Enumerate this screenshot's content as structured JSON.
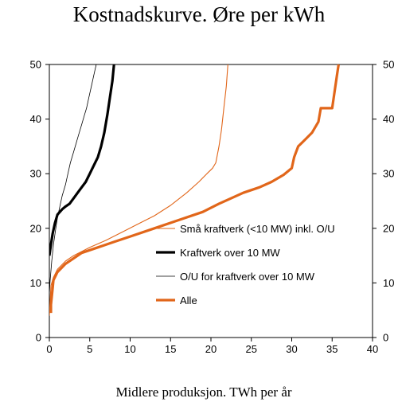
{
  "chart_data": {
    "type": "line",
    "title": "Kostnadskurve. Øre per kWh",
    "xlabel": "Midlere produksjon. TWh per år",
    "ylabel": "",
    "xlim": [
      0,
      40
    ],
    "ylim": [
      0,
      50
    ],
    "x_ticks": [
      "0",
      "5",
      "10",
      "15",
      "20",
      "25",
      "30",
      "35",
      "40"
    ],
    "y_ticks": [
      "0",
      "10",
      "20",
      "30",
      "40",
      "50"
    ],
    "y_ticks_right": [
      "0",
      "10",
      "20",
      "30",
      "40",
      "50"
    ],
    "grid": false,
    "legend_position": "right-center",
    "series": [
      {
        "name": "Små kraftverk (<10 MW) inkl. O/U",
        "color": "#e1661a",
        "width": "thin",
        "x": [
          0,
          0.2,
          0.5,
          1,
          2,
          3,
          5,
          7,
          9,
          11,
          13,
          15,
          17,
          18.5,
          19.5,
          20.2,
          20.6,
          21,
          21.3,
          21.6,
          21.9,
          22.1
        ],
        "y": [
          4,
          9.5,
          11,
          12.5,
          14,
          15,
          16.5,
          17.8,
          19.3,
          20.8,
          22.3,
          24.2,
          26.5,
          28.5,
          30,
          31,
          32,
          35,
          38,
          42,
          46,
          50
        ]
      },
      {
        "name": "Kraftverk over 10 MW",
        "color": "#000000",
        "width": "thick",
        "x": [
          0,
          0.2,
          0.4,
          0.7,
          1,
          1.3,
          1.6,
          2,
          2.5,
          3,
          3.5,
          4,
          4.5,
          5,
          5.5,
          6,
          6.4,
          6.8,
          7.2,
          7.5,
          7.8,
          8
        ],
        "y": [
          15,
          17,
          19,
          21,
          22.5,
          23,
          23.5,
          24,
          24.5,
          25.5,
          26.5,
          27.5,
          28.5,
          30,
          31.5,
          33,
          35,
          37.5,
          41,
          44,
          47,
          50
        ]
      },
      {
        "name": "O/U for kraftverk over 10 MW",
        "color": "#000000",
        "width": "hair",
        "x": [
          0,
          0.1,
          0.3,
          0.5,
          0.8,
          1,
          1.3,
          1.6,
          2,
          2.3,
          2.6,
          3,
          3.3,
          3.6,
          4,
          4.3,
          4.6,
          4.9,
          5.2,
          5.5,
          5.8
        ],
        "y": [
          8,
          10.5,
          14,
          17,
          20,
          22,
          24,
          26,
          28,
          30,
          32,
          34,
          35.5,
          37,
          39,
          40.5,
          42,
          44,
          46,
          48,
          50
        ]
      },
      {
        "name": "Alle",
        "color": "#e1661a",
        "width": "thick",
        "x": [
          0.2,
          0.2,
          0.4,
          0.5,
          1,
          2,
          3,
          4,
          6,
          8,
          10,
          13,
          16,
          19,
          21,
          22.5,
          24,
          26,
          27.5,
          29,
          30,
          30.3,
          30.8,
          31.5,
          32.5,
          33.3,
          33.6,
          34.3,
          35,
          35.2,
          35.3,
          35.5,
          35.6,
          35.8
        ],
        "y": [
          4.5,
          6,
          9,
          10.5,
          12,
          13.5,
          14.5,
          15.5,
          16.5,
          17.5,
          18.5,
          20,
          21.5,
          23,
          24.5,
          25.5,
          26.5,
          27.5,
          28.5,
          29.8,
          31,
          33,
          35,
          36,
          37.5,
          39.5,
          42,
          42,
          42,
          44,
          45,
          47,
          48,
          50
        ]
      }
    ]
  }
}
